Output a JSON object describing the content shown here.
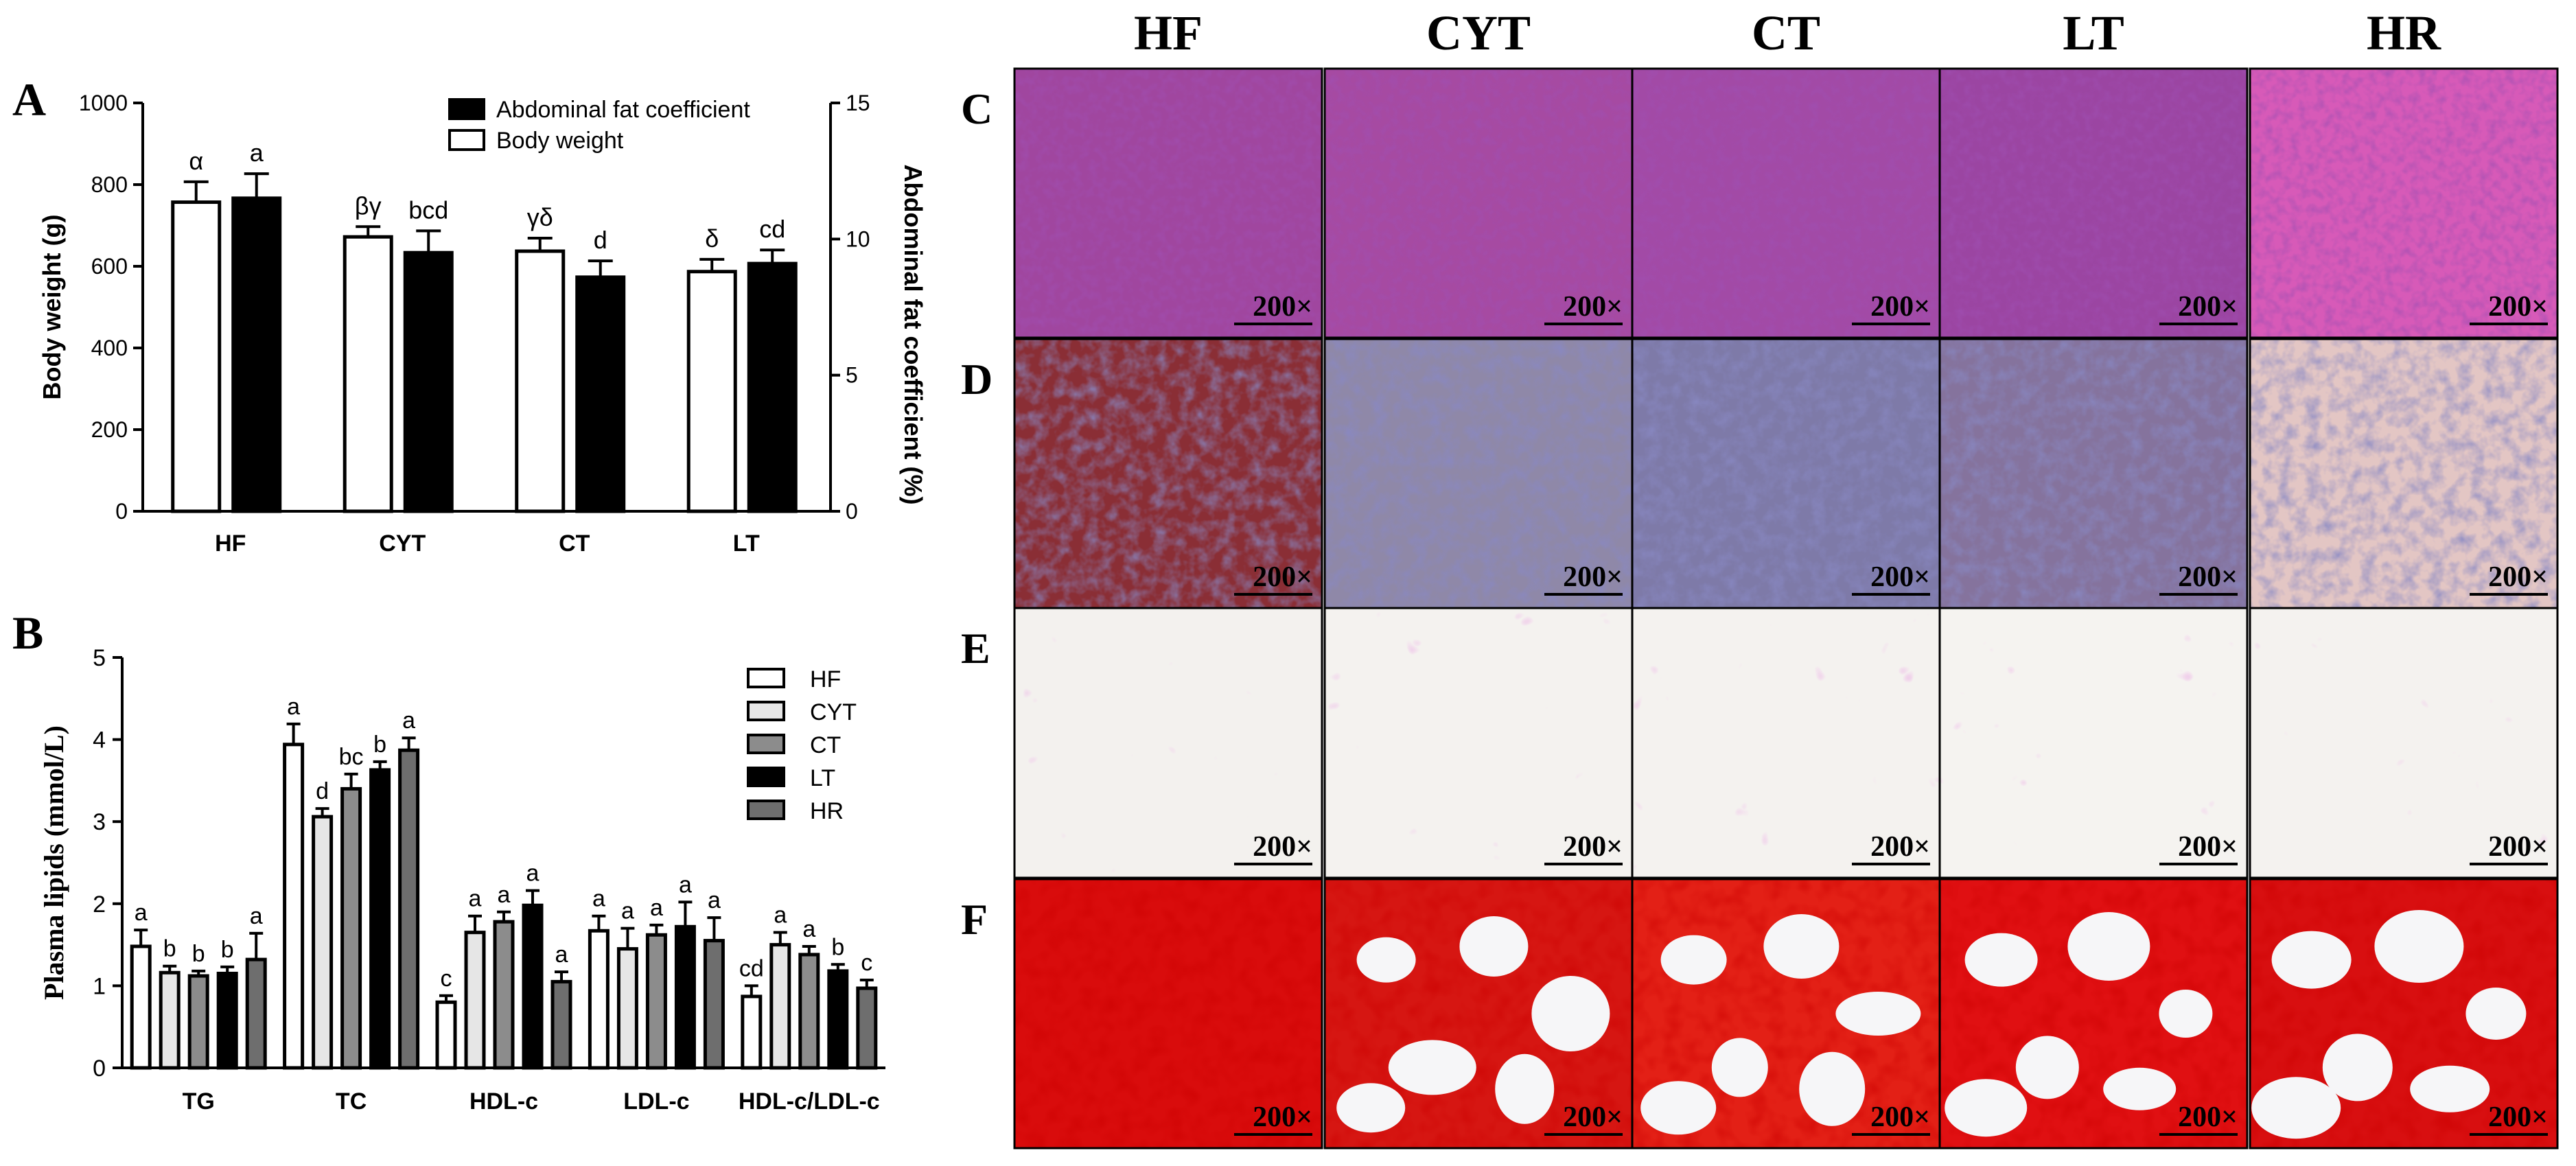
{
  "panel_letters": {
    "A": "A",
    "B": "B",
    "C": "C",
    "D": "D",
    "E": "E",
    "F": "F"
  },
  "colors": {
    "HF": "#ffffff",
    "CYT": "#e6e6e6",
    "CT": "#8c8c8c",
    "LT": "#000000",
    "HR": "#6e6e6e",
    "body_weight": "#ffffff",
    "abdominal_fat": "#000000"
  },
  "chart_data": [
    {
      "id": "A",
      "type": "bar",
      "categories": [
        "HF",
        "CYT",
        "CT",
        "LT"
      ],
      "ylabel": "Body weight (g)",
      "ylim": [
        0,
        1000
      ],
      "yticks": [
        "0",
        "200",
        "400",
        "600",
        "800",
        "1000"
      ],
      "y2label": "Abdominal fat coefficient (%)",
      "y2lim": [
        0,
        15
      ],
      "y2ticks": [
        "0",
        "5",
        "10",
        "15"
      ],
      "legend_position": "top-right",
      "series": [
        {
          "name": "Body weight",
          "axis": "left",
          "values": [
            757,
            672,
            637,
            587
          ],
          "errors": [
            50,
            25,
            32,
            30
          ],
          "letters": [
            "α",
            "βγ",
            "γδ",
            "δ"
          ]
        },
        {
          "name": "Abdominal fat coefficient",
          "axis": "right",
          "values": [
            11.5,
            9.5,
            8.6,
            9.1
          ],
          "errors": [
            0.9,
            0.8,
            0.6,
            0.5
          ],
          "letters": [
            "a",
            "bcd",
            "d",
            "cd"
          ]
        }
      ]
    },
    {
      "id": "B",
      "type": "bar",
      "categories": [
        "TG",
        "TC",
        "HDL-c",
        "LDL-c",
        "HDL-c/LDL-c"
      ],
      "ylabel": "Plasma lipids (mmol/L)",
      "ylim": [
        0,
        5
      ],
      "yticks": [
        "0",
        "1",
        "2",
        "3",
        "4",
        "5"
      ],
      "legend_position": "top-right",
      "series": [
        {
          "name": "HF",
          "values": [
            1.48,
            3.94,
            0.8,
            1.67,
            0.87
          ],
          "errors": [
            0.2,
            0.25,
            0.08,
            0.18,
            0.13
          ],
          "letters": [
            "a",
            "a",
            "c",
            "a",
            "cd"
          ]
        },
        {
          "name": "CYT",
          "values": [
            1.16,
            3.06,
            1.65,
            1.45,
            1.5
          ],
          "errors": [
            0.08,
            0.1,
            0.2,
            0.25,
            0.15
          ],
          "letters": [
            "b",
            "d",
            "a",
            "a",
            "a"
          ]
        },
        {
          "name": "CT",
          "values": [
            1.12,
            3.4,
            1.78,
            1.62,
            1.38
          ],
          "errors": [
            0.06,
            0.18,
            0.12,
            0.12,
            0.1
          ],
          "letters": [
            "b",
            "bc",
            "a",
            "a",
            "a"
          ]
        },
        {
          "name": "LT",
          "values": [
            1.15,
            3.63,
            1.98,
            1.72,
            1.18
          ],
          "errors": [
            0.08,
            0.1,
            0.18,
            0.3,
            0.08
          ],
          "letters": [
            "b",
            "b",
            "a",
            "a",
            "b"
          ]
        },
        {
          "name": "HR",
          "values": [
            1.32,
            3.87,
            1.05,
            1.55,
            0.97
          ],
          "errors": [
            0.32,
            0.15,
            0.12,
            0.28,
            0.1
          ],
          "letters": [
            "a",
            "a",
            "a",
            "a",
            "c"
          ]
        }
      ]
    }
  ],
  "histology": {
    "column_titles": [
      "HF",
      "CYT",
      "CT",
      "LT",
      "HR"
    ],
    "row_letters": [
      "C",
      "D",
      "E",
      "F"
    ],
    "magnification": "200×"
  }
}
